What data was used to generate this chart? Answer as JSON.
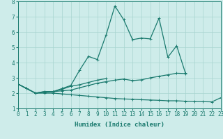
{
  "xlabel": "Humidex (Indice chaleur)",
  "ylabel": "",
  "background_color": "#ceecea",
  "line_color": "#1a7a6e",
  "grid_color": "#a8d5d0",
  "x_values": [
    0,
    1,
    2,
    3,
    4,
    5,
    6,
    7,
    8,
    9,
    10,
    11,
    12,
    13,
    14,
    15,
    16,
    17,
    18,
    19,
    20,
    21,
    22,
    23
  ],
  "series1": [
    2.6,
    2.3,
    2.0,
    2.1,
    2.1,
    2.3,
    2.5,
    3.5,
    4.4,
    4.2,
    5.8,
    7.7,
    6.8,
    5.5,
    5.6,
    5.55,
    6.9,
    4.35,
    5.1,
    3.3,
    null,
    null,
    null,
    null
  ],
  "series2": [
    2.6,
    2.3,
    2.0,
    2.1,
    2.1,
    2.25,
    2.45,
    2.55,
    2.7,
    2.85,
    2.95,
    null,
    null,
    null,
    null,
    null,
    null,
    null,
    null,
    null,
    null,
    null,
    null,
    null
  ],
  "series3": [
    2.6,
    2.3,
    2.0,
    2.0,
    2.0,
    1.95,
    1.9,
    1.85,
    1.8,
    1.75,
    1.7,
    1.65,
    1.62,
    1.6,
    1.57,
    1.55,
    1.53,
    1.5,
    1.5,
    1.47,
    1.45,
    1.44,
    1.43,
    1.7
  ],
  "series4": [
    2.6,
    2.3,
    2.0,
    2.05,
    2.1,
    2.15,
    2.2,
    2.35,
    2.5,
    2.65,
    2.75,
    2.85,
    2.92,
    2.82,
    2.87,
    3.0,
    3.1,
    3.2,
    3.3,
    3.28,
    null,
    null,
    null,
    null
  ],
  "ylim": [
    1,
    8
  ],
  "xlim": [
    0,
    23
  ],
  "yticks": [
    1,
    2,
    3,
    4,
    5,
    6,
    7,
    8
  ],
  "tick_fontsize": 5.5,
  "xlabel_fontsize": 6.5,
  "linewidth": 0.9,
  "markersize": 2.5,
  "markeredgewidth": 0.7
}
